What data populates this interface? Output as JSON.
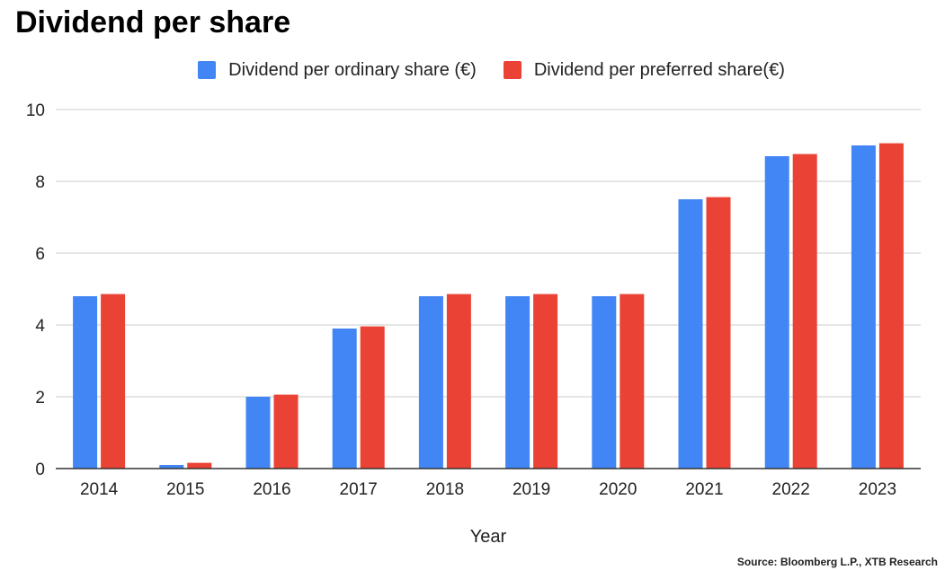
{
  "chart_data": {
    "type": "bar",
    "title": "Dividend per share",
    "xlabel": "Year",
    "ylabel": "",
    "ylim": [
      0,
      10
    ],
    "yticks": [
      0,
      2,
      4,
      6,
      8,
      10
    ],
    "grid": true,
    "legend_position": "top-center",
    "categories": [
      "2014",
      "2015",
      "2016",
      "2017",
      "2018",
      "2019",
      "2020",
      "2021",
      "2022",
      "2023"
    ],
    "series": [
      {
        "name": "Dividend per ordinary share (€)",
        "color": "#4285F4",
        "values": [
          4.8,
          0.1,
          2.0,
          3.9,
          4.8,
          4.8,
          4.8,
          7.5,
          8.7,
          9.0
        ]
      },
      {
        "name": "Dividend per preferred share(€)",
        "color": "#EA4335",
        "values": [
          4.86,
          0.16,
          2.06,
          3.96,
          4.86,
          4.86,
          4.86,
          7.56,
          8.76,
          9.06
        ]
      }
    ]
  },
  "source": "Source: Bloomberg L.P., XTB Research"
}
